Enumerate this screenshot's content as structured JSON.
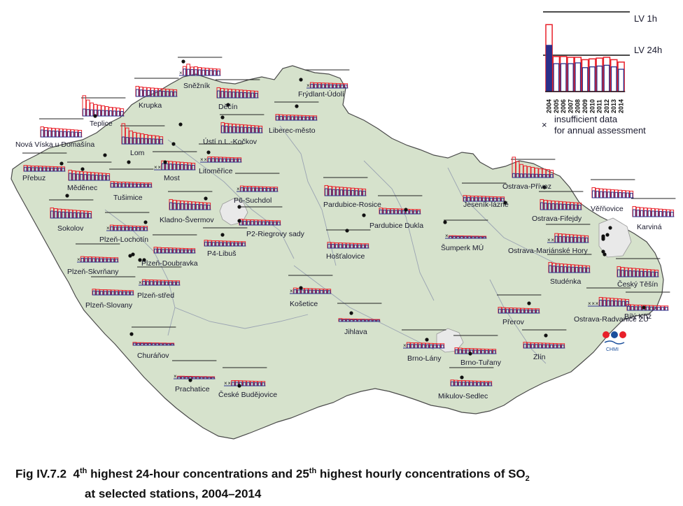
{
  "caption": {
    "prefix": "Fig IV.7.2",
    "parts": [
      "4",
      "th",
      " highest 24-hour concentrations and 25",
      "th",
      " highest hourly concentrations of SO",
      "2"
    ],
    "line2": "at selected stations, 2004–2014"
  },
  "legend": {
    "lv_1h": "LV 1h",
    "lv_24h": "LV 24h",
    "years": [
      "2004",
      "2005",
      "2006",
      "2007",
      "2008",
      "2009",
      "2010",
      "2011",
      "2012",
      "2013",
      "2014"
    ],
    "insufficient_symbol": "×",
    "insufficient_text_1": "insufficient data",
    "insufficient_text_2": "for annual assessment"
  },
  "logo": {
    "text": "CHMI"
  },
  "colors": {
    "land": "#d6e2cc",
    "border": "#4a4a4a",
    "region_border": "#9aa3b2",
    "city": "#e8e8e8",
    "hourly": "#e8202a",
    "daily": "#2a2f8a",
    "daily_fill": "#2a2f8a"
  },
  "stations": [
    {
      "name": "Sněžník"
    },
    {
      "name": "Krupka"
    },
    {
      "name": "Děčín"
    },
    {
      "name": "Frýdlant-Údolí"
    },
    {
      "name": "Teplice"
    },
    {
      "name": "Liberec-město"
    },
    {
      "name": "Nová Víska u Domašína"
    },
    {
      "name": "Lom"
    },
    {
      "name": "Ústí n.L.-Kočkov"
    },
    {
      "name": "Přebuz"
    },
    {
      "name": "Měděnec"
    },
    {
      "name": "Most"
    },
    {
      "name": "Litoměřice"
    },
    {
      "name": "Tušimice"
    },
    {
      "name": "P6-Suchdol"
    },
    {
      "name": "Kladno-Švermov"
    },
    {
      "name": "Sokolov"
    },
    {
      "name": "P2-Riegrovy sady"
    },
    {
      "name": "Plzeň-Lochotín"
    },
    {
      "name": "P4-Libuš"
    },
    {
      "name": "Plzeň-Skvrňany"
    },
    {
      "name": "Plzeň-Doubravka"
    },
    {
      "name": "Plzeň-Slovany"
    },
    {
      "name": "Plzeň-střed"
    },
    {
      "name": "Churáňov"
    },
    {
      "name": "Prachatice"
    },
    {
      "name": "České Budějovice"
    },
    {
      "name": "Košetice"
    },
    {
      "name": "Jihlava"
    },
    {
      "name": "Pardubice-Rosice"
    },
    {
      "name": "Pardubice Dukla"
    },
    {
      "name": "Hošťalovice"
    },
    {
      "name": "Jeseník-lázně"
    },
    {
      "name": "Šumperk MÚ"
    },
    {
      "name": "Brno-Lány"
    },
    {
      "name": "Brno-Tuřany"
    },
    {
      "name": "Mikulov-Sedlec"
    },
    {
      "name": "Přerov"
    },
    {
      "name": "Zlín"
    },
    {
      "name": "Ostrava-Přívoz"
    },
    {
      "name": "Věřňovice"
    },
    {
      "name": "Karviná"
    },
    {
      "name": "Ostrava-Fifejdy"
    },
    {
      "name": "Ostrava-Mariánské Hory"
    },
    {
      "name": "Studénka"
    },
    {
      "name": "Český Těšín"
    },
    {
      "name": "Ostrava-Radvanice ZÚ"
    },
    {
      "name": "Bílý Kříž"
    }
  ]
}
